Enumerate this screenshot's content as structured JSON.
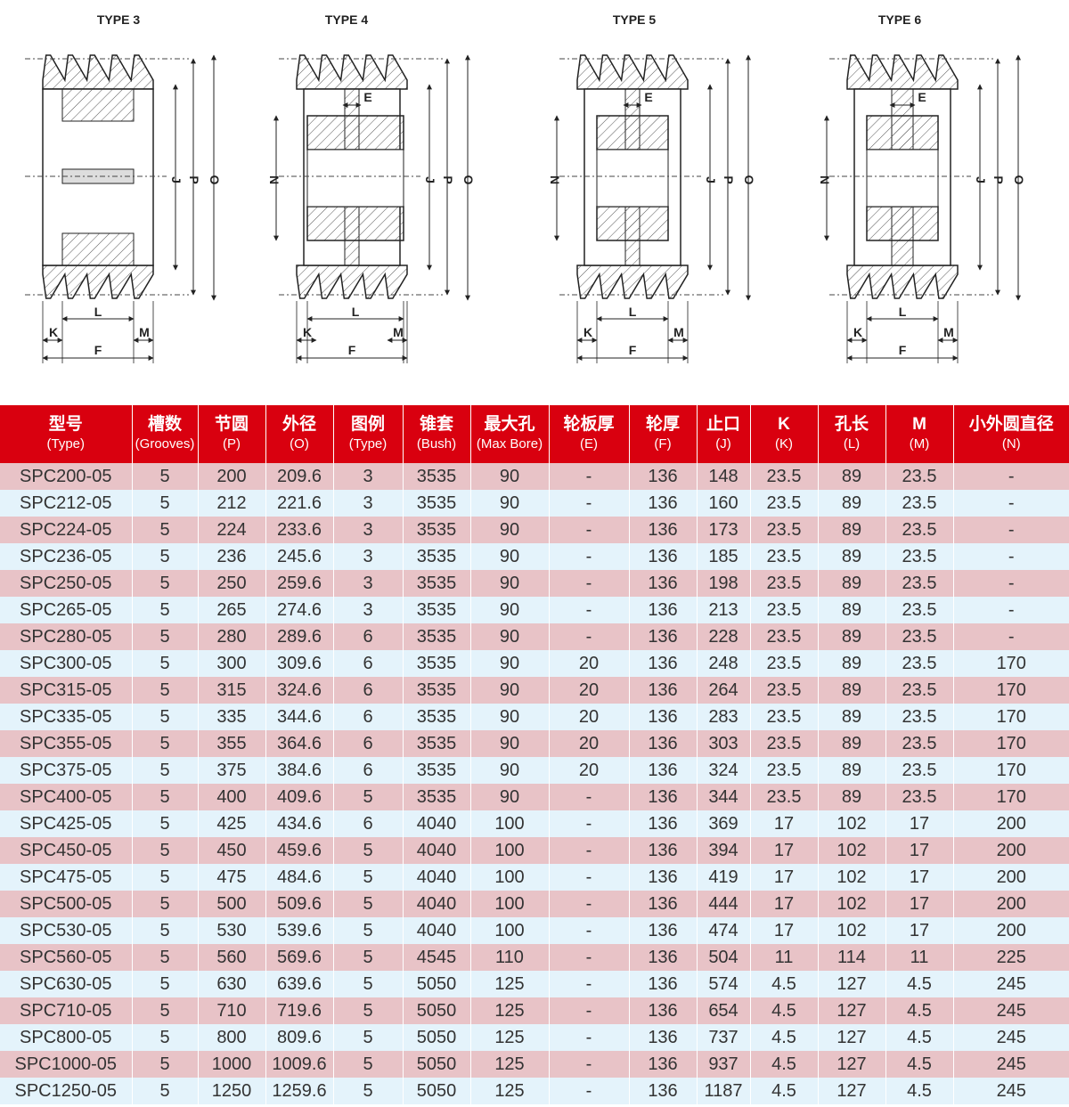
{
  "diagrams": [
    {
      "title": "TYPE 3",
      "type": 3
    },
    {
      "title": "TYPE 4",
      "type": 4
    },
    {
      "title": "TYPE 5",
      "type": 5
    },
    {
      "title": "TYPE 6",
      "type": 6
    }
  ],
  "dimension_labels": {
    "K": "K",
    "L": "L",
    "M": "M",
    "F": "F",
    "J": "J",
    "P": "P",
    "O": "O",
    "E": "E",
    "N": "N"
  },
  "colors": {
    "header": "#d9000f",
    "row_odd": "#e8c3c7",
    "row_even": "#e4f3fb"
  },
  "table": {
    "headers": [
      {
        "zh": "型号",
        "en": "(Type)"
      },
      {
        "zh": "槽数",
        "en": "(Grooves)"
      },
      {
        "zh": "节圆",
        "en": "(P)"
      },
      {
        "zh": "外径",
        "en": "(O)"
      },
      {
        "zh": "图例",
        "en": "(Type)"
      },
      {
        "zh": "锥套",
        "en": "(Bush)"
      },
      {
        "zh": "最大孔",
        "en": "(Max Bore)"
      },
      {
        "zh": "轮板厚",
        "en": "(E)"
      },
      {
        "zh": "轮厚",
        "en": "(F)"
      },
      {
        "zh": "止口",
        "en": "(J)"
      },
      {
        "zh": "K",
        "en": "(K)"
      },
      {
        "zh": "孔长",
        "en": "(L)"
      },
      {
        "zh": "M",
        "en": "(M)"
      },
      {
        "zh": "小外圆直径",
        "en": "(N)"
      }
    ],
    "rows": [
      [
        "SPC200-05",
        "5",
        "200",
        "209.6",
        "3",
        "3535",
        "90",
        "-",
        "136",
        "148",
        "23.5",
        "89",
        "23.5",
        "-"
      ],
      [
        "SPC212-05",
        "5",
        "212",
        "221.6",
        "3",
        "3535",
        "90",
        "-",
        "136",
        "160",
        "23.5",
        "89",
        "23.5",
        "-"
      ],
      [
        "SPC224-05",
        "5",
        "224",
        "233.6",
        "3",
        "3535",
        "90",
        "-",
        "136",
        "173",
        "23.5",
        "89",
        "23.5",
        "-"
      ],
      [
        "SPC236-05",
        "5",
        "236",
        "245.6",
        "3",
        "3535",
        "90",
        "-",
        "136",
        "185",
        "23.5",
        "89",
        "23.5",
        "-"
      ],
      [
        "SPC250-05",
        "5",
        "250",
        "259.6",
        "3",
        "3535",
        "90",
        "-",
        "136",
        "198",
        "23.5",
        "89",
        "23.5",
        "-"
      ],
      [
        "SPC265-05",
        "5",
        "265",
        "274.6",
        "3",
        "3535",
        "90",
        "-",
        "136",
        "213",
        "23.5",
        "89",
        "23.5",
        "-"
      ],
      [
        "SPC280-05",
        "5",
        "280",
        "289.6",
        "6",
        "3535",
        "90",
        "-",
        "136",
        "228",
        "23.5",
        "89",
        "23.5",
        "-"
      ],
      [
        "SPC300-05",
        "5",
        "300",
        "309.6",
        "6",
        "3535",
        "90",
        "20",
        "136",
        "248",
        "23.5",
        "89",
        "23.5",
        "170"
      ],
      [
        "SPC315-05",
        "5",
        "315",
        "324.6",
        "6",
        "3535",
        "90",
        "20",
        "136",
        "264",
        "23.5",
        "89",
        "23.5",
        "170"
      ],
      [
        "SPC335-05",
        "5",
        "335",
        "344.6",
        "6",
        "3535",
        "90",
        "20",
        "136",
        "283",
        "23.5",
        "89",
        "23.5",
        "170"
      ],
      [
        "SPC355-05",
        "5",
        "355",
        "364.6",
        "6",
        "3535",
        "90",
        "20",
        "136",
        "303",
        "23.5",
        "89",
        "23.5",
        "170"
      ],
      [
        "SPC375-05",
        "5",
        "375",
        "384.6",
        "6",
        "3535",
        "90",
        "20",
        "136",
        "324",
        "23.5",
        "89",
        "23.5",
        "170"
      ],
      [
        "SPC400-05",
        "5",
        "400",
        "409.6",
        "5",
        "3535",
        "90",
        "-",
        "136",
        "344",
        "23.5",
        "89",
        "23.5",
        "170"
      ],
      [
        "SPC425-05",
        "5",
        "425",
        "434.6",
        "6",
        "4040",
        "100",
        "-",
        "136",
        "369",
        "17",
        "102",
        "17",
        "200"
      ],
      [
        "SPC450-05",
        "5",
        "450",
        "459.6",
        "5",
        "4040",
        "100",
        "-",
        "136",
        "394",
        "17",
        "102",
        "17",
        "200"
      ],
      [
        "SPC475-05",
        "5",
        "475",
        "484.6",
        "5",
        "4040",
        "100",
        "-",
        "136",
        "419",
        "17",
        "102",
        "17",
        "200"
      ],
      [
        "SPC500-05",
        "5",
        "500",
        "509.6",
        "5",
        "4040",
        "100",
        "-",
        "136",
        "444",
        "17",
        "102",
        "17",
        "200"
      ],
      [
        "SPC530-05",
        "5",
        "530",
        "539.6",
        "5",
        "4040",
        "100",
        "-",
        "136",
        "474",
        "17",
        "102",
        "17",
        "200"
      ],
      [
        "SPC560-05",
        "5",
        "560",
        "569.6",
        "5",
        "4545",
        "110",
        "-",
        "136",
        "504",
        "11",
        "114",
        "11",
        "225"
      ],
      [
        "SPC630-05",
        "5",
        "630",
        "639.6",
        "5",
        "5050",
        "125",
        "-",
        "136",
        "574",
        "4.5",
        "127",
        "4.5",
        "245"
      ],
      [
        "SPC710-05",
        "5",
        "710",
        "719.6",
        "5",
        "5050",
        "125",
        "-",
        "136",
        "654",
        "4.5",
        "127",
        "4.5",
        "245"
      ],
      [
        "SPC800-05",
        "5",
        "800",
        "809.6",
        "5",
        "5050",
        "125",
        "-",
        "136",
        "737",
        "4.5",
        "127",
        "4.5",
        "245"
      ],
      [
        "SPC1000-05",
        "5",
        "1000",
        "1009.6",
        "5",
        "5050",
        "125",
        "-",
        "136",
        "937",
        "4.5",
        "127",
        "4.5",
        "245"
      ],
      [
        "SPC1250-05",
        "5",
        "1250",
        "1259.6",
        "5",
        "5050",
        "125",
        "-",
        "136",
        "1187",
        "4.5",
        "127",
        "4.5",
        "245"
      ]
    ]
  }
}
